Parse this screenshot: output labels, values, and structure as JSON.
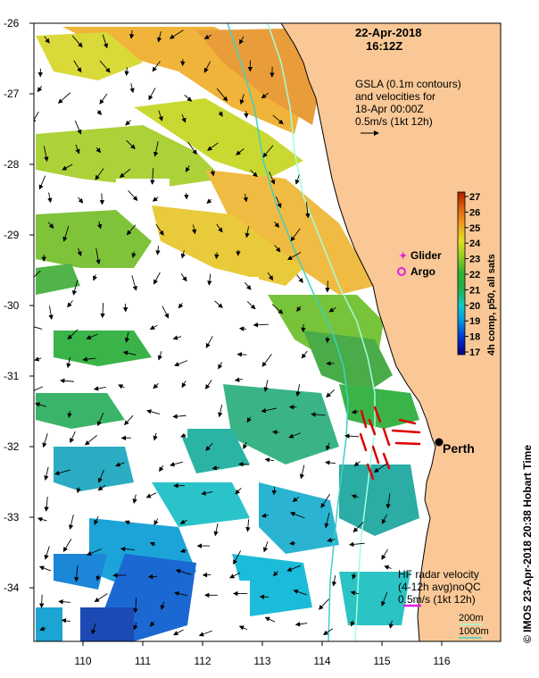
{
  "map": {
    "datetime": "22-Apr-2018",
    "time": "16:12Z",
    "gsla_line1": "GSLA (0.1m contours)",
    "gsla_line2": "and velocities for",
    "gsla_line3": "18-Apr 00:00Z",
    "gsla_scale": "0.5m/s (1kt 12h)",
    "hf_line1": "HF radar velocity",
    "hf_line2": "(4-12h avg)noQC",
    "hf_scale": "0.5m/s (1kt 12h)",
    "depth1": "200m",
    "depth2": "1000m",
    "city": "Perth",
    "legend_glider": "Glider",
    "legend_argo": "Argo",
    "colorbar_title": "4h comp, p50, all sats",
    "credit": "© IMOS 23-Apr-2018 20:38 Hobart Time",
    "lon_ticks": [
      "110",
      "111",
      "112",
      "113",
      "114",
      "115",
      "116"
    ],
    "lat_ticks": [
      "-26",
      "-27",
      "-28",
      "-29",
      "-30",
      "-31",
      "-32",
      "-33",
      "-34"
    ],
    "colorbar_ticks": [
      "27",
      "26",
      "25",
      "24",
      "23",
      "22",
      "21",
      "20",
      "19",
      "18",
      "17"
    ],
    "colors": {
      "land": "#f9c896",
      "glider": "#e020e0",
      "argo": "#e020e0",
      "depth200": "#a0ffe0",
      "depth1000": "#40d0c0",
      "hf_arrow": "#e020e0",
      "radar": "#dd0000"
    }
  }
}
